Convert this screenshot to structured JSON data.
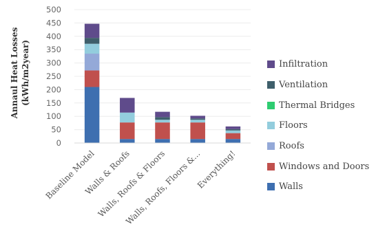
{
  "chart_data": {
    "type": "bar",
    "stacked": true,
    "ylabel_line1": "Annaul Heat Losses",
    "ylabel_line2": "(kWh/m2year)",
    "ylim": [
      0,
      500
    ],
    "yticks": [
      "0",
      "50",
      "100",
      "150",
      "200",
      "250",
      "300",
      "350",
      "400",
      "450",
      "500"
    ],
    "grid": true,
    "legend_position": "right",
    "categories": [
      "Baseline Model",
      "Walls & Roofs",
      "Walls, Roofs & Floors",
      "Walls, Roofs, Floors &...",
      "Everything!"
    ],
    "series": [
      {
        "name": "Walls",
        "color": "#3e6fb0",
        "values": [
          210,
          15,
          15,
          15,
          15
        ]
      },
      {
        "name": "Windows and Doors",
        "color": "#c0504d",
        "values": [
          62,
          62,
          62,
          62,
          22
        ]
      },
      {
        "name": "Roofs",
        "color": "#94a9d8",
        "values": [
          63,
          0,
          0,
          0,
          0
        ]
      },
      {
        "name": "Floors",
        "color": "#93cddd",
        "values": [
          37,
          37,
          10,
          10,
          10
        ]
      },
      {
        "name": "Thermal Bridges",
        "color": "#2ecc71",
        "values": [
          0,
          0,
          0,
          0,
          0
        ]
      },
      {
        "name": "Ventilation",
        "color": "#3f5f6b",
        "values": [
          22,
          0,
          10,
          5,
          5
        ]
      },
      {
        "name": "Infiltration",
        "color": "#5f4b8b",
        "values": [
          53,
          55,
          20,
          10,
          10
        ]
      }
    ]
  }
}
